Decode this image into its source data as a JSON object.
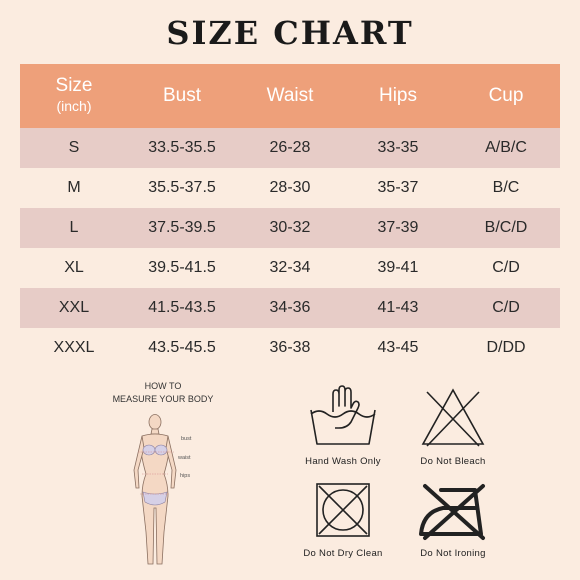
{
  "title": "SIZE CHART",
  "table": {
    "header": {
      "size": "Size",
      "unit": "(inch)",
      "bust": "Bust",
      "waist": "Waist",
      "hips": "Hips",
      "cup": "Cup"
    },
    "rows": [
      {
        "size": "S",
        "bust": "33.5-35.5",
        "waist": "26-28",
        "hips": "33-35",
        "cup": "A/B/C"
      },
      {
        "size": "M",
        "bust": "35.5-37.5",
        "waist": "28-30",
        "hips": "35-37",
        "cup": "B/C"
      },
      {
        "size": "L",
        "bust": "37.5-39.5",
        "waist": "30-32",
        "hips": "37-39",
        "cup": "B/C/D"
      },
      {
        "size": "XL",
        "bust": "39.5-41.5",
        "waist": "32-34",
        "hips": "39-41",
        "cup": "C/D"
      },
      {
        "size": "XXL",
        "bust": "41.5-43.5",
        "waist": "34-36",
        "hips": "41-43",
        "cup": "C/D"
      },
      {
        "size": "XXXL",
        "bust": "43.5-45.5",
        "waist": "36-38",
        "hips": "43-45",
        "cup": "D/DD"
      }
    ]
  },
  "measure": {
    "title_line1": "HOW TO",
    "title_line2": "MEASURE YOUR BODY",
    "bust": "bust",
    "waist": "waist",
    "hips": "hips"
  },
  "care": {
    "hand_wash": "Hand Wash Only",
    "no_bleach": "Do Not Bleach",
    "no_dry_clean": "Do Not Dry Clean",
    "no_ironing": "Do Not Ironing"
  },
  "colors": {
    "header_bg": "#eea07a",
    "shade_row": "#e7ccc7",
    "page_bg": "#fbece0"
  }
}
